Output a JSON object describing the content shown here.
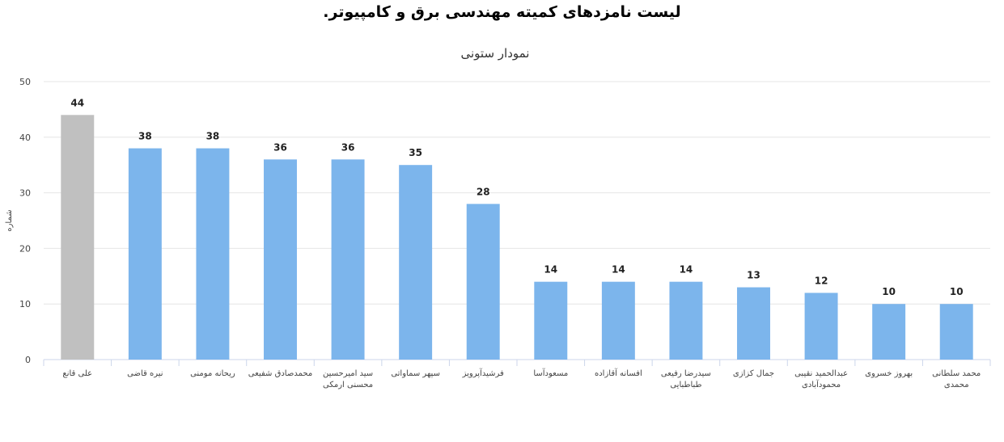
{
  "page": {
    "title": "لیست نامزدهای  کمیته مهندسی برق و کامپیوتر."
  },
  "chart_data": {
    "type": "bar",
    "title": "نمودار ستونی",
    "xlabel": "",
    "ylabel": "شماره",
    "ylim": [
      0,
      50
    ],
    "yticks": [
      0,
      10,
      20,
      30,
      40,
      50
    ],
    "grid": true,
    "legend": "none",
    "categories": [
      [
        "علی قانع"
      ],
      [
        "نیره قاضی"
      ],
      [
        "ریحانه مومنی"
      ],
      [
        "محمدصادق شفیعی"
      ],
      [
        "سید امیرحسین",
        "محسنی ارمکی"
      ],
      [
        "سپهر سماواتی"
      ],
      [
        "فرشیدآپرویز"
      ],
      [
        "مسعودآسا"
      ],
      [
        "افسانه آقازاده"
      ],
      [
        "سیدرضا رفیعی",
        "طباطبایی"
      ],
      [
        "جمال کزازی"
      ],
      [
        "عبدالحمید نقیبی",
        "محمودآبادی"
      ],
      [
        "بهروز خسروی"
      ],
      [
        "محمد سلطانی",
        "محمدی"
      ]
    ],
    "values": [
      44,
      38,
      38,
      36,
      36,
      35,
      28,
      14,
      14,
      14,
      13,
      12,
      10,
      10
    ],
    "colors": [
      "#c0c0c0",
      "#7cb5ec",
      "#7cb5ec",
      "#7cb5ec",
      "#7cb5ec",
      "#7cb5ec",
      "#7cb5ec",
      "#7cb5ec",
      "#7cb5ec",
      "#7cb5ec",
      "#7cb5ec",
      "#7cb5ec",
      "#7cb5ec",
      "#7cb5ec"
    ],
    "grid_color": "#e6e6e6",
    "axis_color": "#ccd6eb"
  }
}
